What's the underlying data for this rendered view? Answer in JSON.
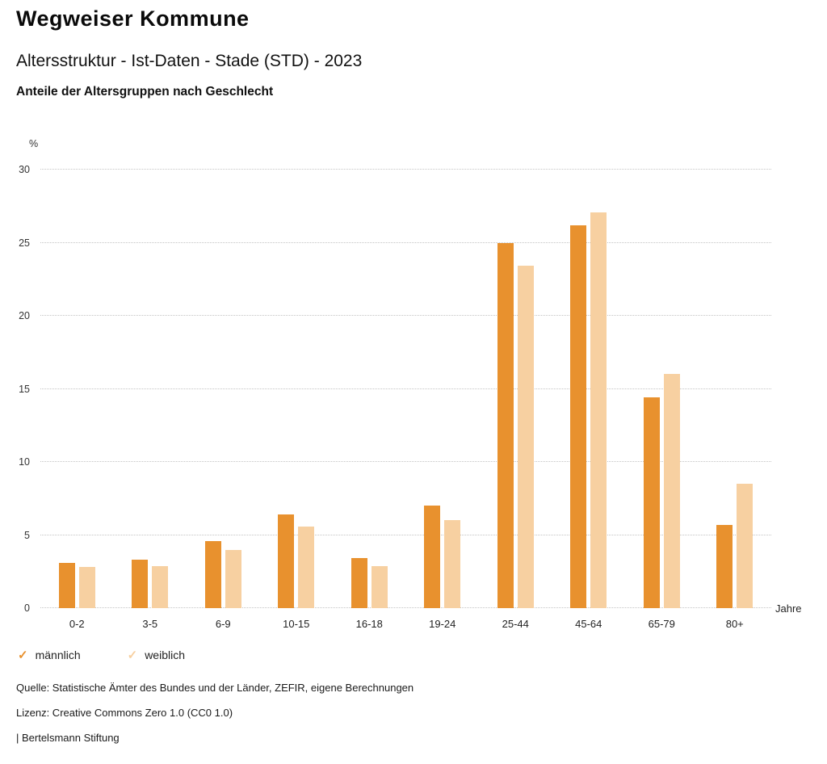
{
  "header": {
    "title": "Wegweiser Kommune",
    "subtitle": "Altersstruktur - Ist-Daten - Stade (STD) - 2023",
    "chart_heading": "Anteile der Altersgruppen nach Geschlecht"
  },
  "chart_data": {
    "type": "bar",
    "title": "Anteile der Altersgruppen nach Geschlecht",
    "categories": [
      "0-2",
      "3-5",
      "6-9",
      "10-15",
      "16-18",
      "19-24",
      "25-44",
      "45-64",
      "65-79",
      "80+"
    ],
    "series": [
      {
        "name": "männlich",
        "color": "#e8912e",
        "values": [
          3.1,
          3.3,
          4.6,
          6.4,
          3.4,
          7.0,
          25.0,
          26.2,
          14.4,
          5.7
        ]
      },
      {
        "name": "weiblich",
        "color": "#f7d0a1",
        "values": [
          2.8,
          2.9,
          4.0,
          5.6,
          2.9,
          6.0,
          23.4,
          27.1,
          16.0,
          8.5
        ]
      }
    ],
    "xlabel": "Jahre",
    "ylabel": "%",
    "ylim": [
      0,
      30
    ],
    "yticks": [
      0,
      5,
      10,
      15,
      20,
      25,
      30
    ],
    "grid": true,
    "legend_position": "bottom",
    "legend_marker": "✓"
  },
  "footer": {
    "source": "Quelle: Statistische Ämter des Bundes und der Länder, ZEFIR, eigene Berechnungen",
    "license": "Lizenz: Creative Commons Zero 1.0 (CC0 1.0)",
    "attribution": "| Bertelsmann Stiftung"
  }
}
